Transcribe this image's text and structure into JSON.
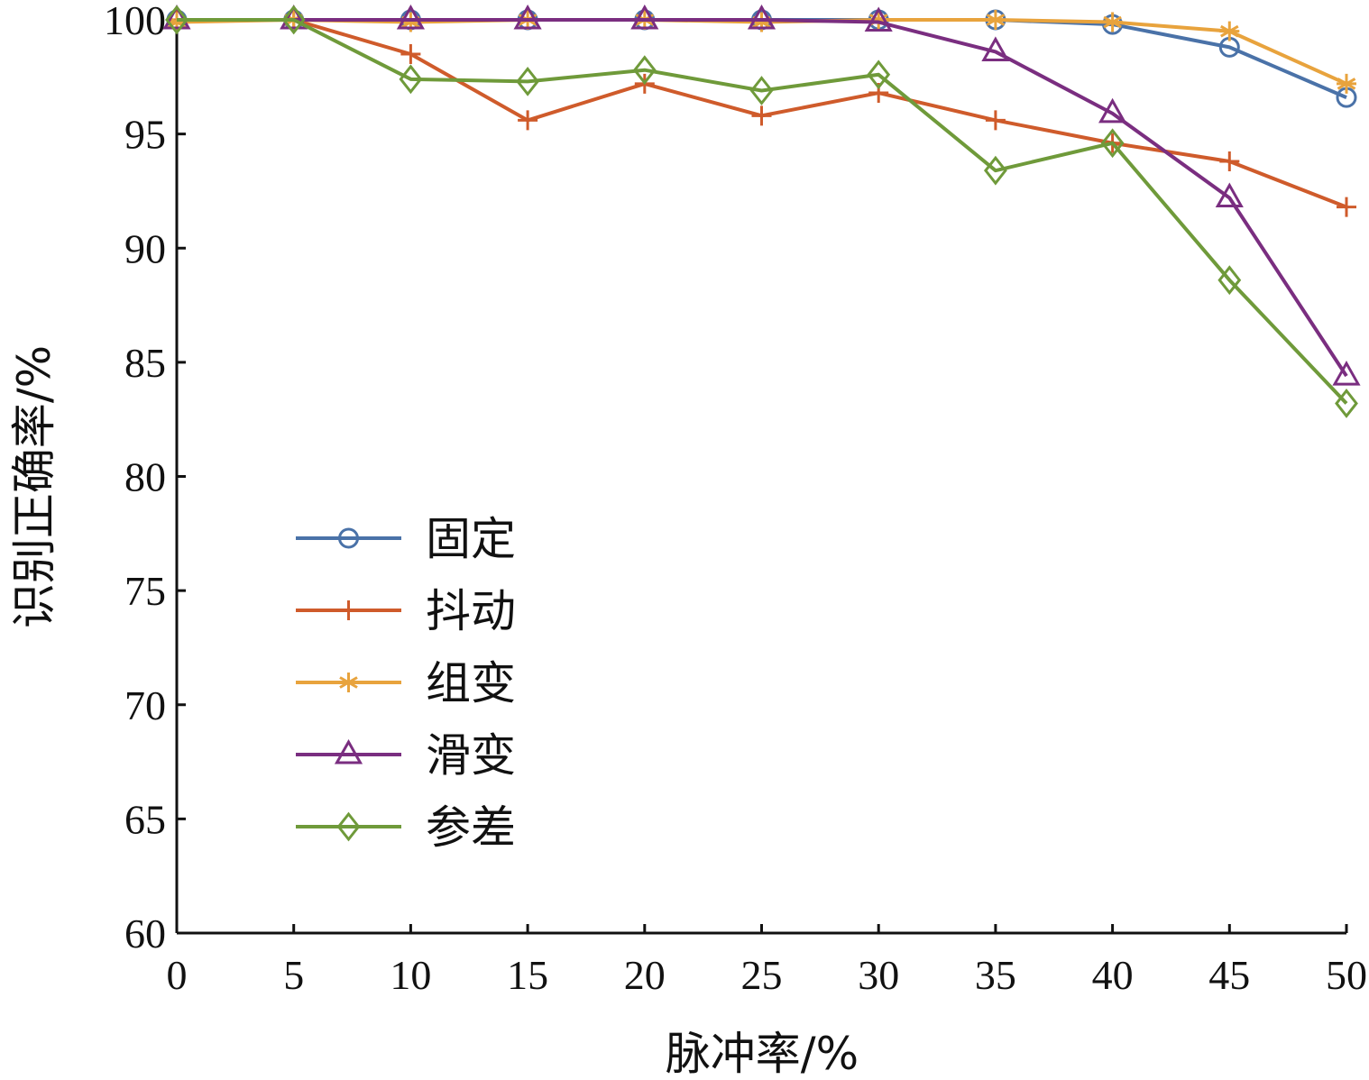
{
  "chart_data": {
    "type": "line",
    "title": "",
    "xlabel": "脉冲率/%",
    "ylabel": "识别正确率/%",
    "xlim": [
      0,
      50
    ],
    "ylim": [
      60,
      100
    ],
    "xticks": [
      0,
      5,
      10,
      15,
      20,
      25,
      30,
      35,
      40,
      45,
      50
    ],
    "yticks": [
      60,
      65,
      70,
      75,
      80,
      85,
      90,
      95,
      100
    ],
    "x": [
      0,
      5,
      10,
      15,
      20,
      25,
      30,
      35,
      40,
      45,
      50
    ],
    "legend_position": "center-left",
    "grid": false,
    "series": [
      {
        "name": "固定",
        "marker": "circle",
        "color": "#4a72a8",
        "values": [
          100,
          100,
          100,
          100,
          100,
          100,
          100,
          100,
          99.8,
          98.8,
          96.6
        ]
      },
      {
        "name": "抖动",
        "marker": "plus",
        "color": "#cf5b2b",
        "values": [
          100,
          100,
          98.5,
          95.6,
          97.2,
          95.8,
          96.8,
          95.6,
          94.6,
          93.8,
          91.8
        ]
      },
      {
        "name": "组变",
        "marker": "asterisk",
        "color": "#e8a33d",
        "values": [
          99.9,
          100,
          99.9,
          100,
          100,
          99.9,
          100,
          100,
          99.9,
          99.5,
          97.2
        ]
      },
      {
        "name": "滑变",
        "marker": "triangle",
        "color": "#7a2e80",
        "values": [
          100,
          100,
          100,
          100,
          100,
          100,
          99.9,
          98.6,
          95.9,
          92.2,
          84.4
        ]
      },
      {
        "name": "参差",
        "marker": "diamond",
        "color": "#6f9a3a",
        "values": [
          100,
          100,
          97.4,
          97.3,
          97.8,
          96.9,
          97.6,
          93.4,
          94.6,
          88.6,
          83.2
        ]
      }
    ]
  }
}
